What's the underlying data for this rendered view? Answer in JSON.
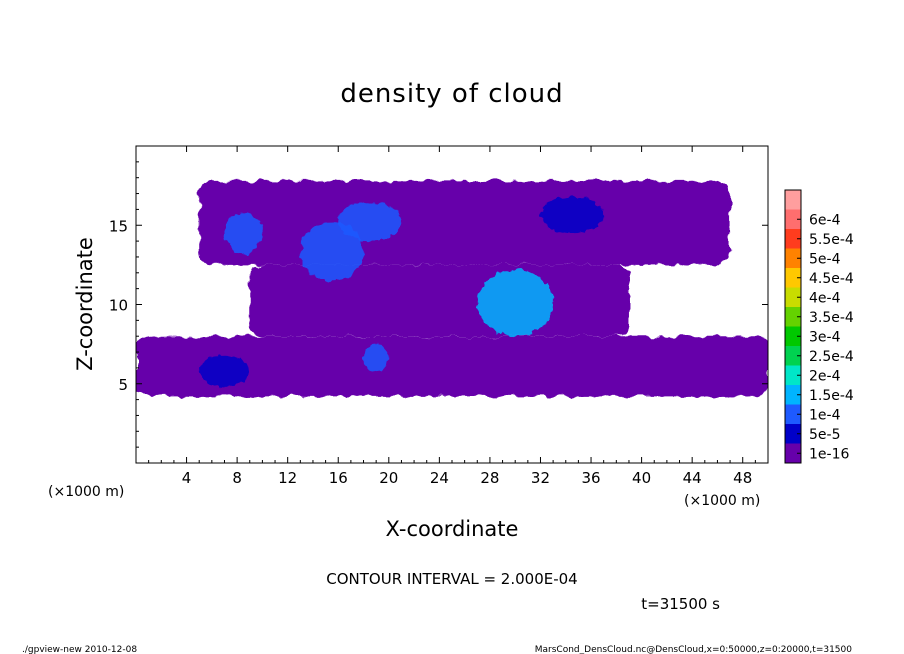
{
  "chart_data": {
    "type": "heatmap",
    "title": "density of cloud",
    "xlabel": "X-coordinate",
    "ylabel": "Z-coordinate",
    "x_unit": "(×1000 m)",
    "y_unit": "(×1000 m)",
    "xlim": [
      0,
      50
    ],
    "ylim": [
      0,
      20
    ],
    "x_ticks": [
      "4",
      "8",
      "12",
      "16",
      "20",
      "24",
      "28",
      "32",
      "36",
      "40",
      "44",
      "48"
    ],
    "y_ticks": [
      "5",
      "10",
      "15"
    ],
    "colorbar": {
      "labels": [
        "1e-16",
        "5e-5",
        "1e-4",
        "1.5e-4",
        "2e-4",
        "2.5e-4",
        "3e-4",
        "3.5e-4",
        "4e-4",
        "4.5e-4",
        "5e-4",
        "5.5e-4",
        "6e-4"
      ],
      "colors": [
        "#6600aa",
        "#0000c8",
        "#1e5aff",
        "#00b4ff",
        "#00e6c8",
        "#00d250",
        "#00c800",
        "#64d200",
        "#c8dc00",
        "#ffc800",
        "#ff8200",
        "#ff3c1e",
        "#ff6e6e",
        "#ff9e9e"
      ]
    },
    "regions": [
      {
        "name": "low-layer",
        "x": [
          0,
          50
        ],
        "z": [
          4.2,
          8.0
        ],
        "level": "1e-16"
      },
      {
        "name": "mid-layer",
        "x": [
          9,
          39
        ],
        "z": [
          8.0,
          12.5
        ],
        "level": "1e-16"
      },
      {
        "name": "upper-layer",
        "x": [
          5,
          47
        ],
        "z": [
          12.5,
          17.8
        ],
        "level": "1e-16"
      },
      {
        "name": "core-1",
        "x": [
          7,
          10
        ],
        "z": [
          13.2,
          15.8
        ],
        "level": "1e-4"
      },
      {
        "name": "core-2",
        "x": [
          13,
          18
        ],
        "z": [
          11.5,
          15.2
        ],
        "level": "1e-4"
      },
      {
        "name": "core-3",
        "x": [
          16,
          21
        ],
        "z": [
          14.0,
          16.5
        ],
        "level": "1e-4"
      },
      {
        "name": "core-4",
        "x": [
          27,
          33
        ],
        "z": [
          8.0,
          12.2
        ],
        "level": "1.5e-4"
      },
      {
        "name": "core-5",
        "x": [
          32,
          37
        ],
        "z": [
          14.5,
          16.8
        ],
        "level": "5e-5"
      },
      {
        "name": "core-6",
        "x": [
          5,
          9
        ],
        "z": [
          4.8,
          6.8
        ],
        "level": "5e-5"
      },
      {
        "name": "core-7",
        "x": [
          18,
          20
        ],
        "z": [
          5.8,
          7.5
        ],
        "level": "1e-4"
      }
    ]
  },
  "texts": {
    "contour_interval": "CONTOUR INTERVAL = 2.000E-04",
    "time": "t=31500 s",
    "footer_left": "./gpview-new 2010-12-08",
    "footer_right": "MarsCond_DensCloud.nc@DensCloud,x=0:50000,z=0:20000,t=31500"
  }
}
